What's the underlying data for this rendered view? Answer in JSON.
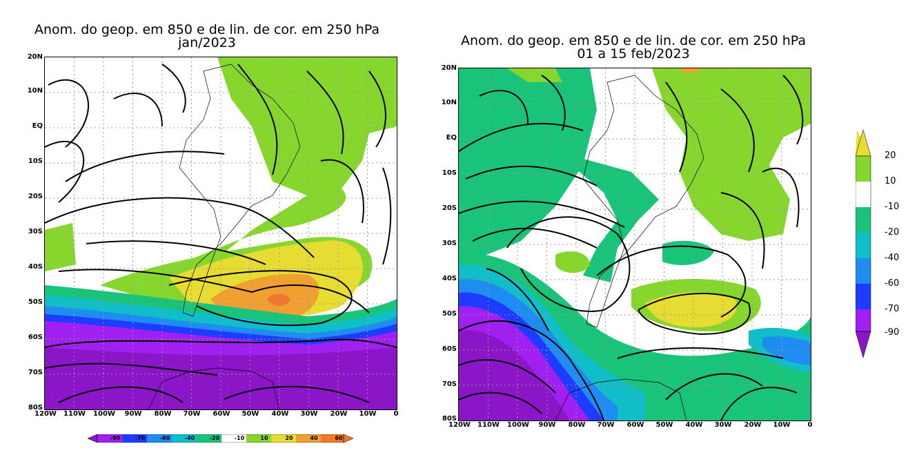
{
  "maps": [
    {
      "title_line1": "Anom. do geop. em 850 e de lin. de cor. em 250 hPa",
      "title_line2": "jan/2023",
      "lat_labels": [
        "20N",
        "10N",
        "EQ",
        "10S",
        "20S",
        "30S",
        "40S",
        "50S",
        "60S",
        "70S",
        "80S"
      ],
      "lon_labels": [
        "120W",
        "110W",
        "100W",
        "90W",
        "80W",
        "70W",
        "60W",
        "50W",
        "40W",
        "30W",
        "20W",
        "10W",
        "0"
      ]
    },
    {
      "title_line1": "Anom. do geop. em 850 e de lin. de cor. em 250 hPa",
      "title_line2": "01 a 15 feb/2023",
      "lat_labels": [
        "20N",
        "10N",
        "EQ",
        "10S",
        "20S",
        "30S",
        "40S",
        "50S",
        "60S",
        "70S",
        "80S"
      ],
      "lon_labels": [
        "120W",
        "110W",
        "100W",
        "90W",
        "80W",
        "70W",
        "60W",
        "50W",
        "40W",
        "30W",
        "20W",
        "10W",
        "0"
      ]
    }
  ],
  "colorbar_horizontal": {
    "labels": [
      "-90",
      "-70",
      "-60",
      "-40",
      "-20",
      "-10",
      "10",
      "20",
      "40",
      "60"
    ]
  },
  "colorbar_vertical": {
    "labels": [
      "20",
      "10",
      "-10",
      "-20",
      "-40",
      "-60",
      "-70",
      "-90"
    ]
  },
  "colors": {
    "purple_dark": "#8a16c8",
    "purple": "#a020f0",
    "blue_dark": "#1e3cff",
    "blue": "#1e8cf0",
    "cyan": "#0fbec8",
    "teal_green": "#19c37a",
    "white": "#ffffff",
    "green": "#86d62e",
    "yellow": "#e6dc32",
    "orange": "#f0a030",
    "orange_dark": "#f07828"
  }
}
